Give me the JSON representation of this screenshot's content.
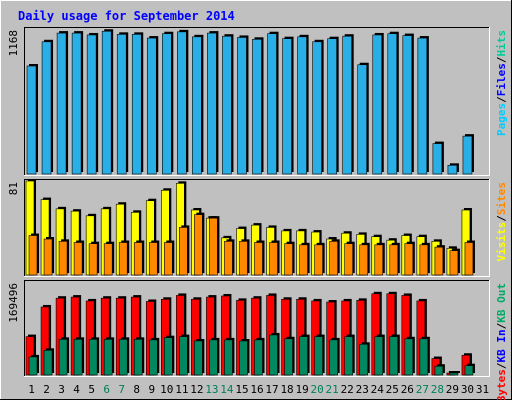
{
  "chart_data": {
    "type": "bar",
    "title": "Daily usage for September 2014",
    "categories": [
      "1",
      "2",
      "3",
      "4",
      "5",
      "6",
      "7",
      "8",
      "9",
      "10",
      "11",
      "12",
      "13",
      "14",
      "15",
      "16",
      "17",
      "18",
      "19",
      "20",
      "21",
      "22",
      "23",
      "24",
      "25",
      "26",
      "27",
      "28",
      "29",
      "30",
      "31"
    ],
    "weekend_days": [
      "6",
      "7",
      "13",
      "14",
      "20",
      "21",
      "27",
      "28"
    ],
    "panels": [
      {
        "id": "hits",
        "max_label": "1168",
        "ymax": 1168,
        "legend": [
          {
            "label": "Pages",
            "color": "#00ccff"
          },
          {
            "label": "Files",
            "color": "#0000ff"
          },
          {
            "label": "Hits",
            "color": "#00cc99"
          }
        ],
        "series": [
          {
            "color": "#2aaee6",
            "values": [
              870,
              1065,
              1135,
              1135,
              1120,
              1150,
              1125,
              1125,
              1095,
              1130,
              1145,
              1105,
              1135,
              1110,
              1100,
              1085,
              1130,
              1090,
              1105,
              1065,
              1090,
              1110,
              880,
              1120,
              1130,
              1115,
              1095,
              245,
              70,
              305,
              0
            ]
          }
        ]
      },
      {
        "id": "visits",
        "max_label": "81",
        "ymax": 81,
        "legend": [
          {
            "label": "Visits",
            "color": "#ffff00"
          },
          {
            "label": "Sites",
            "color": "#ff8800"
          }
        ],
        "series": [
          {
            "name": "Visits",
            "color": "#ffff00",
            "values": [
              81,
              65,
              57,
              55,
              51,
              57,
              61,
              54,
              64,
              73,
              79,
              56,
              49,
              32,
              40,
              43,
              41,
              38,
              38,
              37,
              31,
              36,
              35,
              33,
              30,
              34,
              33,
              29,
              23,
              56,
              0
            ]
          },
          {
            "name": "Sites",
            "color": "#ff8800",
            "values": [
              34,
              31,
              29,
              28,
              27,
              27,
              28,
              28,
              28,
              28,
              41,
              52,
              49,
              29,
              29,
              28,
              28,
              27,
              26,
              26,
              29,
              27,
              26,
              26,
              26,
              27,
              26,
              24,
              21,
              28,
              0
            ]
          }
        ]
      },
      {
        "id": "kbytes",
        "max_label": "169496",
        "ymax": 169496,
        "legend": [
          {
            "label": "KBytes",
            "color": "#ff0000"
          },
          {
            "label": "KB In",
            "color": "#0000ff"
          },
          {
            "label": "KB Out",
            "color": "#00aa66"
          }
        ],
        "series": [
          {
            "name": "KBytes",
            "color": "#ff0000",
            "values": [
              70000,
              124000,
              140000,
              142000,
              135000,
              140000,
              140000,
              142000,
              134000,
              138000,
              145000,
              138000,
              142000,
              144000,
              136000,
              140000,
              145000,
              138000,
              138000,
              135000,
              133000,
              135000,
              136000,
              148000,
              148000,
              145000,
              135000,
              30000,
              2000,
              36000,
              0
            ]
          },
          {
            "name": "KB Out",
            "color": "#008860",
            "values": [
              33000,
              45000,
              65000,
              65000,
              65000,
              65000,
              65000,
              65000,
              64000,
              68000,
              70000,
              62000,
              64000,
              64000,
              62000,
              64000,
              73000,
              66000,
              70000,
              70000,
              64000,
              70000,
              56000,
              70000,
              70000,
              66000,
              66000,
              16000,
              1000,
              17000,
              0
            ]
          }
        ]
      }
    ],
    "xlabel": "",
    "grid": false
  }
}
